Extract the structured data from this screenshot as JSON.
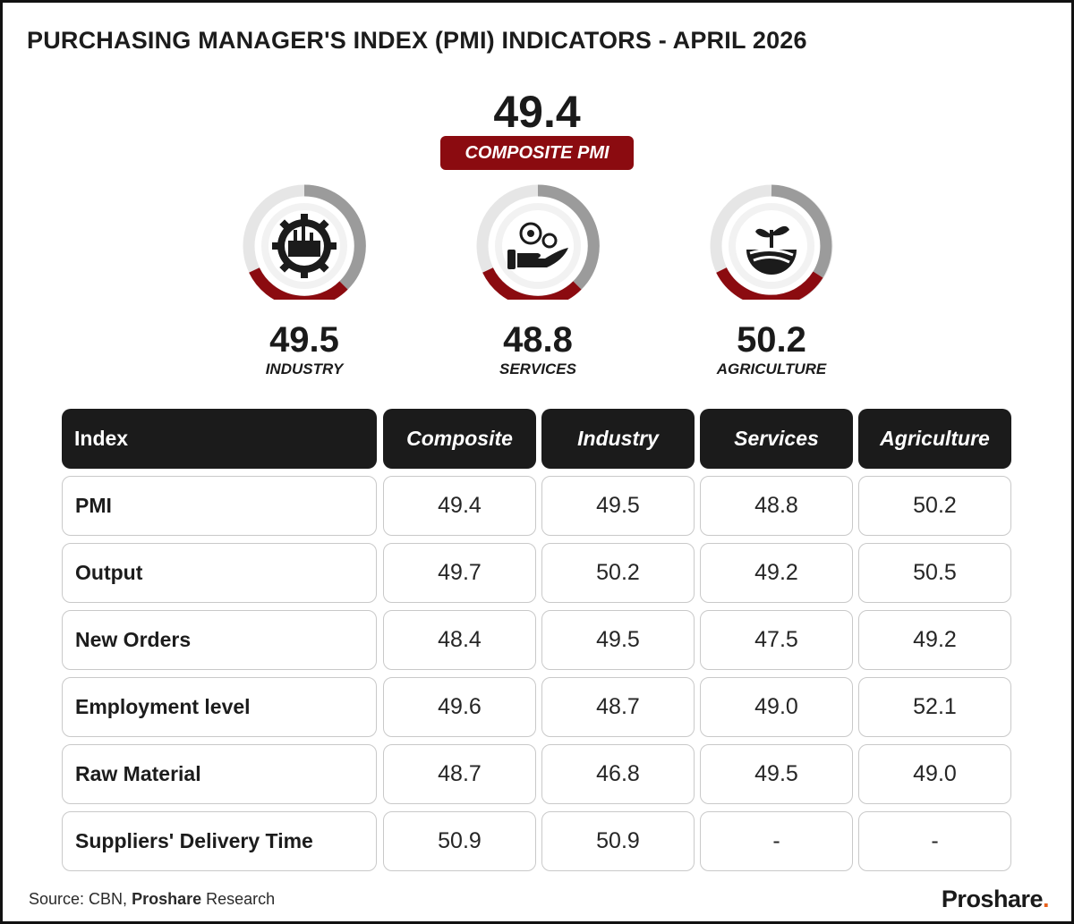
{
  "title": "PURCHASING MANAGER'S INDEX (PMI) INDICATORS - APRIL 2026",
  "composite": {
    "value": "49.4",
    "label": "COMPOSITE PMI"
  },
  "colors": {
    "accent_red": "#8b0b10",
    "gauge_gray": "#9b9b9b",
    "gauge_light": "#e6e6e6",
    "header_dark": "#1b1b1b",
    "brand_dot": "#e8601c"
  },
  "gauges": [
    {
      "value": "49.5",
      "label": "INDUSTRY",
      "icon": "factory-gear-icon"
    },
    {
      "value": "48.8",
      "label": "SERVICES",
      "icon": "hand-gears-icon"
    },
    {
      "value": "50.2",
      "label": "AGRICULTURE",
      "icon": "sprout-field-icon"
    }
  ],
  "chart_data": {
    "type": "table",
    "title": "PURCHASING MANAGER'S INDEX (PMI) INDICATORS - APRIL 2026",
    "columns": [
      "Index",
      "Composite",
      "Industry",
      "Services",
      "Agriculture"
    ],
    "rows": [
      [
        "PMI",
        "49.4",
        "49.5",
        "48.8",
        "50.2"
      ],
      [
        "Output",
        "49.7",
        "50.2",
        "49.2",
        "50.5"
      ],
      [
        "New Orders",
        "48.4",
        "49.5",
        "47.5",
        "49.2"
      ],
      [
        "Employment level",
        "49.6",
        "48.7",
        "49.0",
        "52.1"
      ],
      [
        "Raw Material",
        "48.7",
        "46.8",
        "49.5",
        "49.0"
      ],
      [
        "Suppliers' Delivery Time",
        "50.9",
        "50.9",
        "-",
        "-"
      ]
    ]
  },
  "footer": {
    "source_prefix": "Source: CBN,",
    "source_bold": "Proshare",
    "source_suffix": "Research",
    "brand": "Proshare",
    "brand_dot": "."
  }
}
